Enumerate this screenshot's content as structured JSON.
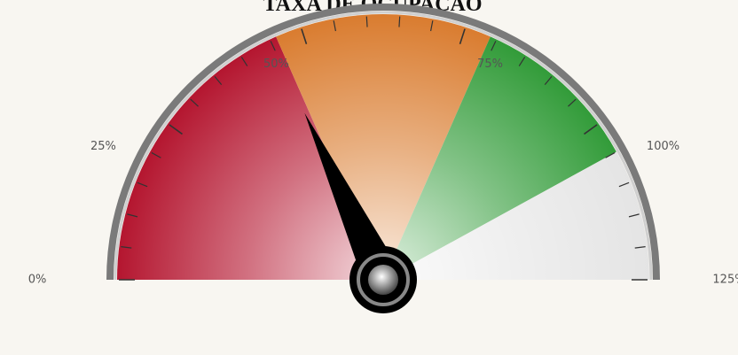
{
  "chart_data": {
    "type": "gauge",
    "title": "TAXA DE OCUPAÇÃO",
    "value": 45,
    "min": 0,
    "max": 125,
    "ranges": [
      {
        "from": 0,
        "to": 46,
        "color": "#b3122c"
      },
      {
        "from": 46,
        "to": 79,
        "color": "#d97a2c"
      },
      {
        "from": 79,
        "to": 105,
        "color": "#2f9a36"
      },
      {
        "from": 105,
        "to": 125,
        "color": "#e4e4e4"
      }
    ],
    "ticks": [
      {
        "value": 0,
        "label": "0%"
      },
      {
        "value": 25,
        "label": "25%"
      },
      {
        "value": 50,
        "label": "50%"
      },
      {
        "value": 75,
        "label": "75%"
      },
      {
        "value": 100,
        "label": "100%"
      },
      {
        "value": 125,
        "label": "125%"
      }
    ],
    "minor_ticks": [
      5,
      10,
      15,
      20,
      30,
      35,
      40,
      45,
      55,
      60,
      65,
      70,
      80,
      85,
      90,
      95,
      105,
      110,
      115,
      120
    ]
  }
}
